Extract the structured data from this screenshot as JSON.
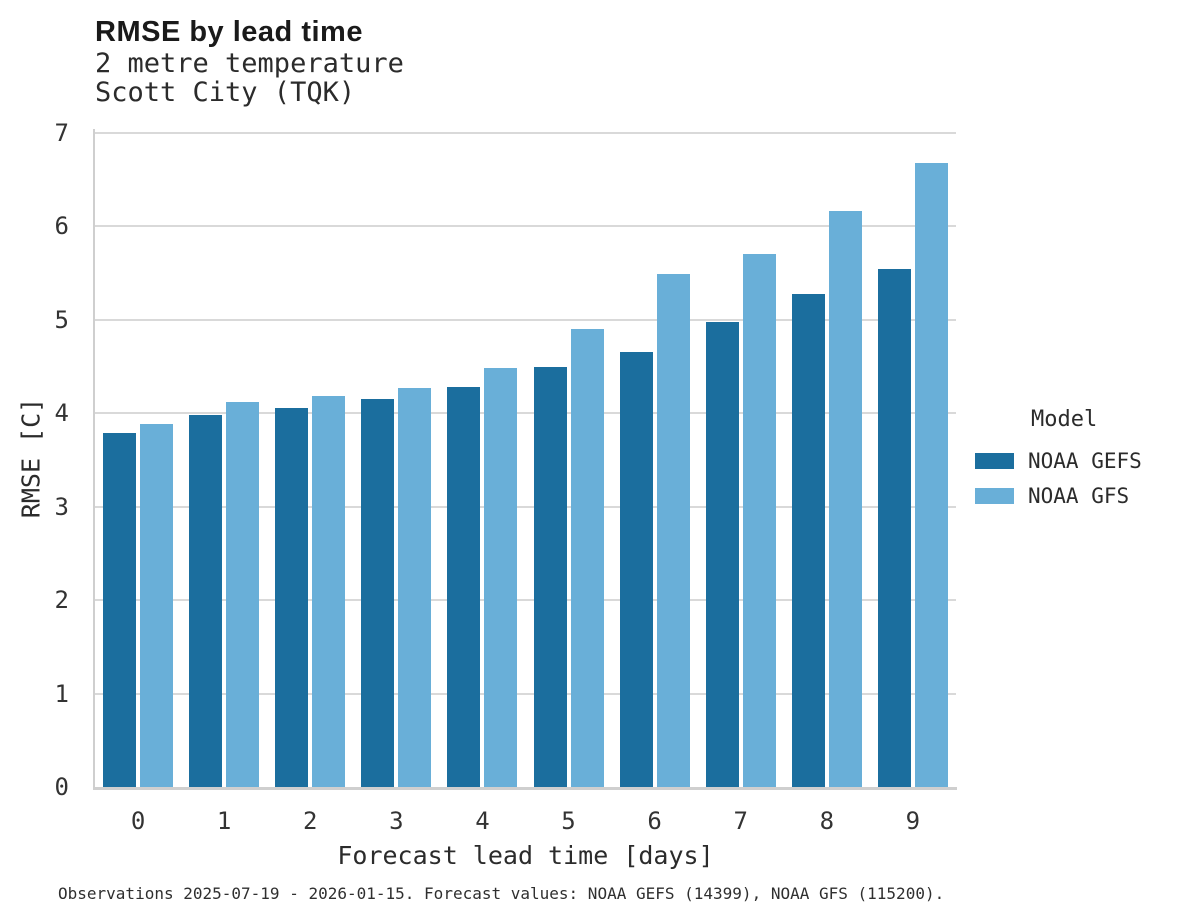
{
  "header": {
    "title": "RMSE by lead time",
    "subtitle_line1": "2 metre temperature",
    "subtitle_line2": "Scott City (TQK)"
  },
  "chart_data": {
    "type": "bar",
    "categories": [
      "0",
      "1",
      "2",
      "3",
      "4",
      "5",
      "6",
      "7",
      "8",
      "9"
    ],
    "series": [
      {
        "name": "NOAA GEFS",
        "color": "#1b6e9e",
        "values": [
          3.79,
          3.98,
          4.06,
          4.15,
          4.28,
          4.5,
          4.66,
          4.98,
          5.28,
          5.54
        ]
      },
      {
        "name": "NOAA GFS",
        "color": "#69afd8",
        "values": [
          3.89,
          4.12,
          4.19,
          4.27,
          4.49,
          4.9,
          5.49,
          5.7,
          6.16,
          6.68
        ]
      }
    ],
    "title": "RMSE by lead time",
    "xlabel": "Forecast lead time [days]",
    "ylabel": "RMSE [C]",
    "ylim": [
      0,
      7
    ],
    "yticks": [
      0,
      1,
      2,
      3,
      4,
      5,
      6,
      7
    ],
    "grid": "horizontal",
    "legend_title": "Model",
    "legend_position": "right",
    "gridline_color": "#d9d9d9",
    "axis_color": "#cfcfcf"
  },
  "footnote": "Observations 2025-07-19 - 2026-01-15. Forecast values: NOAA GEFS (14399), NOAA GFS (115200)."
}
